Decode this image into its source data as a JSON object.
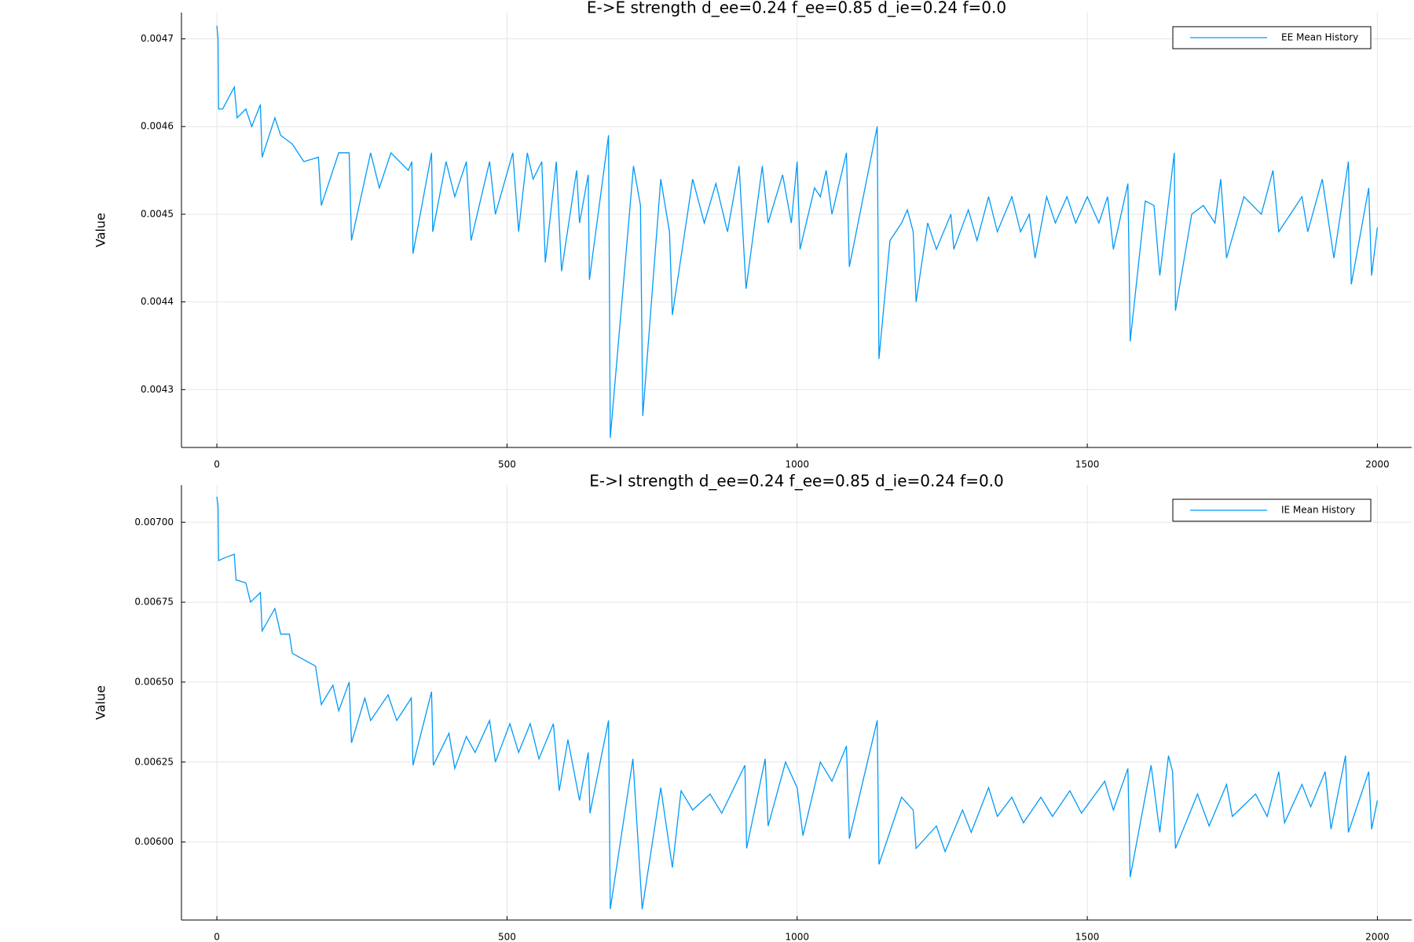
{
  "chart_data": [
    {
      "type": "line",
      "title": "E->E strength d_ee=0.24 f_ee=0.85 d_ie=0.24 f=0.0",
      "ylabel": "Value",
      "x": [
        0,
        2,
        3,
        10,
        30,
        35,
        50,
        60,
        75,
        78,
        100,
        110,
        130,
        150,
        175,
        180,
        210,
        228,
        232,
        265,
        280,
        300,
        330,
        336,
        338,
        370,
        372,
        395,
        410,
        430,
        438,
        470,
        480,
        510,
        520,
        535,
        545,
        560,
        566,
        585,
        594,
        620,
        625,
        640,
        642,
        675,
        678,
        718,
        730,
        734,
        765,
        780,
        785,
        820,
        840,
        860,
        880,
        900,
        912,
        940,
        950,
        975,
        990,
        1000,
        1005,
        1030,
        1040,
        1050,
        1060,
        1085,
        1090,
        1138,
        1141,
        1160,
        1180,
        1190,
        1200,
        1205,
        1225,
        1240,
        1265,
        1270,
        1295,
        1310,
        1330,
        1345,
        1370,
        1385,
        1400,
        1410,
        1430,
        1445,
        1465,
        1480,
        1500,
        1520,
        1535,
        1545,
        1570,
        1574,
        1600,
        1615,
        1625,
        1650,
        1652,
        1680,
        1700,
        1720,
        1730,
        1740,
        1770,
        1800,
        1820,
        1830,
        1870,
        1880,
        1905,
        1925,
        1950,
        1955,
        1985,
        1990,
        2000
      ],
      "series": [
        {
          "name": "EE Mean History",
          "color": "#009af9",
          "values": [
            0.004715,
            0.0047,
            0.00462,
            0.00462,
            0.004645,
            0.00461,
            0.00462,
            0.0046,
            0.004625,
            0.004565,
            0.00461,
            0.00459,
            0.00458,
            0.00456,
            0.004565,
            0.00451,
            0.00457,
            0.00457,
            0.00447,
            0.00457,
            0.00453,
            0.00457,
            0.00455,
            0.00456,
            0.004455,
            0.00457,
            0.00448,
            0.00456,
            0.00452,
            0.00456,
            0.00447,
            0.00456,
            0.0045,
            0.00457,
            0.00448,
            0.00457,
            0.00454,
            0.00456,
            0.004445,
            0.00456,
            0.004435,
            0.00455,
            0.00449,
            0.004545,
            0.004425,
            0.00459,
            0.004245,
            0.004555,
            0.00451,
            0.00427,
            0.00454,
            0.00448,
            0.004385,
            0.00454,
            0.00449,
            0.004535,
            0.00448,
            0.004555,
            0.004415,
            0.004555,
            0.00449,
            0.004545,
            0.00449,
            0.00456,
            0.00446,
            0.00453,
            0.00452,
            0.00455,
            0.0045,
            0.00457,
            0.00444,
            0.0046,
            0.004335,
            0.00447,
            0.00449,
            0.004505,
            0.00448,
            0.0044,
            0.00449,
            0.00446,
            0.0045,
            0.00446,
            0.004505,
            0.00447,
            0.00452,
            0.00448,
            0.00452,
            0.00448,
            0.0045,
            0.00445,
            0.00452,
            0.00449,
            0.00452,
            0.00449,
            0.00452,
            0.00449,
            0.00452,
            0.00446,
            0.004535,
            0.004355,
            0.004515,
            0.00451,
            0.00443,
            0.00457,
            0.00439,
            0.0045,
            0.00451,
            0.00449,
            0.00454,
            0.00445,
            0.00452,
            0.0045,
            0.00455,
            0.00448,
            0.00452,
            0.00448,
            0.00454,
            0.00445,
            0.00456,
            0.00442,
            0.00453,
            0.00443,
            0.004485
          ]
        }
      ],
      "xlim": [
        -61,
        2059
      ],
      "ylim": [
        0.004234,
        0.00473
      ],
      "xticks": [
        0,
        500,
        1000,
        1500,
        2000
      ],
      "yticks": [
        0.0043,
        0.0044,
        0.0045,
        0.0046,
        0.0047
      ],
      "grid": true,
      "legend": "top right"
    },
    {
      "type": "line",
      "title": "E->I strength d_ee=0.24 f_ee=0.85 d_ie=0.24 f=0.0",
      "ylabel": "Value",
      "x": [
        0,
        2,
        3,
        15,
        30,
        33,
        50,
        58,
        75,
        78,
        100,
        110,
        125,
        130,
        150,
        170,
        180,
        200,
        210,
        228,
        232,
        255,
        265,
        295,
        310,
        335,
        338,
        370,
        373,
        400,
        410,
        430,
        445,
        470,
        480,
        505,
        520,
        540,
        555,
        580,
        590,
        605,
        625,
        640,
        643,
        675,
        678,
        717,
        733,
        765,
        785,
        800,
        820,
        850,
        870,
        910,
        913,
        945,
        950,
        980,
        1000,
        1010,
        1040,
        1060,
        1085,
        1090,
        1138,
        1141,
        1180,
        1200,
        1205,
        1240,
        1255,
        1285,
        1300,
        1330,
        1345,
        1370,
        1390,
        1420,
        1440,
        1470,
        1490,
        1530,
        1545,
        1570,
        1574,
        1610,
        1625,
        1640,
        1647,
        1652,
        1690,
        1710,
        1740,
        1750,
        1790,
        1810,
        1830,
        1840,
        1870,
        1885,
        1910,
        1920,
        1945,
        1950,
        1985,
        1990,
        2000
      ],
      "series": [
        {
          "name": "IE Mean History",
          "color": "#009af9",
          "values": [
            0.00708,
            0.00705,
            0.00688,
            0.00689,
            0.0069,
            0.00682,
            0.00681,
            0.00675,
            0.00678,
            0.00666,
            0.00673,
            0.00665,
            0.00665,
            0.00659,
            0.00657,
            0.00655,
            0.00643,
            0.00649,
            0.00641,
            0.0065,
            0.00631,
            0.00645,
            0.00638,
            0.00646,
            0.00638,
            0.00645,
            0.00624,
            0.00647,
            0.00624,
            0.00634,
            0.00623,
            0.00633,
            0.00628,
            0.00638,
            0.00625,
            0.00637,
            0.00628,
            0.00637,
            0.00626,
            0.00637,
            0.00616,
            0.00632,
            0.00613,
            0.00628,
            0.00609,
            0.00638,
            0.00579,
            0.00626,
            0.00579,
            0.00617,
            0.00592,
            0.00616,
            0.0061,
            0.00615,
            0.00609,
            0.00624,
            0.00598,
            0.00626,
            0.00605,
            0.00625,
            0.00617,
            0.00602,
            0.00625,
            0.00619,
            0.0063,
            0.00601,
            0.00638,
            0.00593,
            0.00614,
            0.0061,
            0.00598,
            0.00605,
            0.00597,
            0.0061,
            0.00603,
            0.00617,
            0.00608,
            0.00614,
            0.00606,
            0.00614,
            0.00608,
            0.00616,
            0.00609,
            0.00619,
            0.0061,
            0.00623,
            0.00589,
            0.00624,
            0.00603,
            0.00627,
            0.00622,
            0.00598,
            0.00615,
            0.00605,
            0.00618,
            0.00608,
            0.00615,
            0.00608,
            0.00622,
            0.00606,
            0.00618,
            0.00611,
            0.00622,
            0.00604,
            0.00627,
            0.00603,
            0.00622,
            0.00604,
            0.00613
          ]
        }
      ],
      "xlim": [
        -61,
        2059
      ],
      "ylim": [
        0.005756,
        0.007116
      ],
      "xticks": [
        0,
        500,
        1000,
        1500,
        2000
      ],
      "yticks": [
        {
          "value": 0.006,
          "label": "0.00600"
        },
        {
          "value": 0.00625,
          "label": "0.00625"
        },
        {
          "value": 0.0065,
          "label": "0.00650"
        },
        {
          "value": 0.00675,
          "label": "0.00675"
        },
        {
          "value": 0.007,
          "label": "0.00700"
        }
      ],
      "grid": true,
      "legend": "top right"
    }
  ]
}
